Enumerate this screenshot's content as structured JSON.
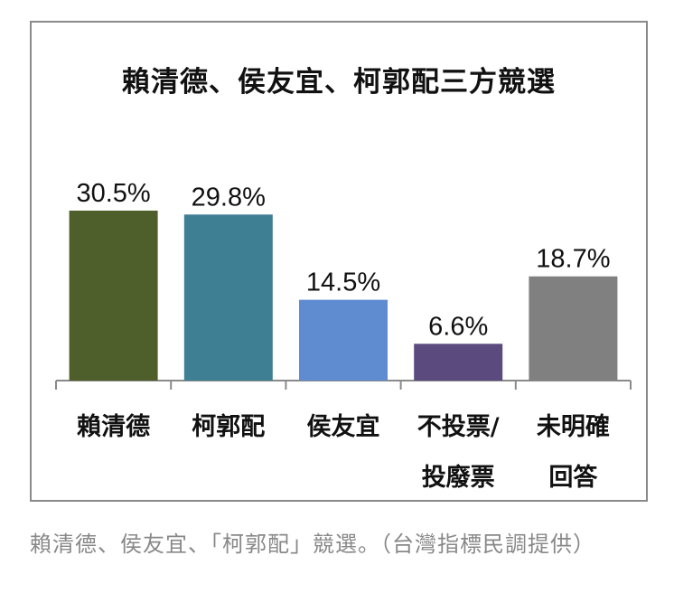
{
  "chart_data": {
    "type": "bar",
    "title": "賴清德、侯友宜、柯郭配三方競選",
    "categories": [
      {
        "lines": [
          "賴清德"
        ]
      },
      {
        "lines": [
          "柯郭配"
        ]
      },
      {
        "lines": [
          "侯友宜"
        ]
      },
      {
        "lines": [
          "不投票/",
          "投廢票"
        ]
      },
      {
        "lines": [
          "未明確",
          "回答"
        ]
      }
    ],
    "values": [
      30.5,
      29.8,
      14.5,
      6.6,
      18.7
    ],
    "data_labels": [
      "30.5%",
      "29.8%",
      "14.5%",
      "6.6%",
      "18.7%"
    ],
    "colors": [
      "#4f5f2b",
      "#3f7f94",
      "#5f8bd1",
      "#5b4a7e",
      "#808080"
    ],
    "ylim": [
      0,
      30.5
    ],
    "grid": false,
    "legend": "none"
  },
  "caption": "賴清德、侯友宜、「柯郭配」競選。（台灣指標民調提供）"
}
